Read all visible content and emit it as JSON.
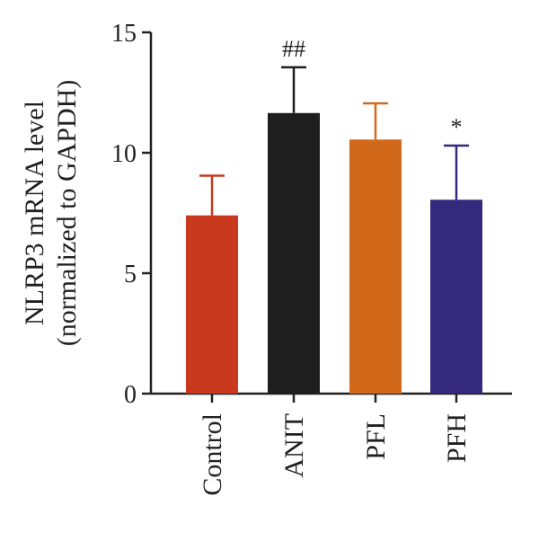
{
  "chart_data": {
    "type": "bar",
    "ylabel": "NLRP3 mRNA level",
    "ylabel_sub": "(normalized to GAPDH)",
    "ylim": [
      0,
      15
    ],
    "yticks": [
      0,
      5,
      10,
      15
    ],
    "ytick_labels": [
      "0",
      "5",
      "10",
      "15"
    ],
    "grid": false,
    "categories": [
      "Control",
      "ANIT",
      "PFL",
      "PFH"
    ],
    "values": [
      7.4,
      11.65,
      10.55,
      8.05
    ],
    "error_upper": [
      1.65,
      1.9,
      1.5,
      2.25
    ],
    "annotations": [
      "",
      "##",
      "",
      "*"
    ],
    "colors": [
      "#c8391d",
      "#1e1e1e",
      "#d2691a",
      "#35297e"
    ]
  }
}
